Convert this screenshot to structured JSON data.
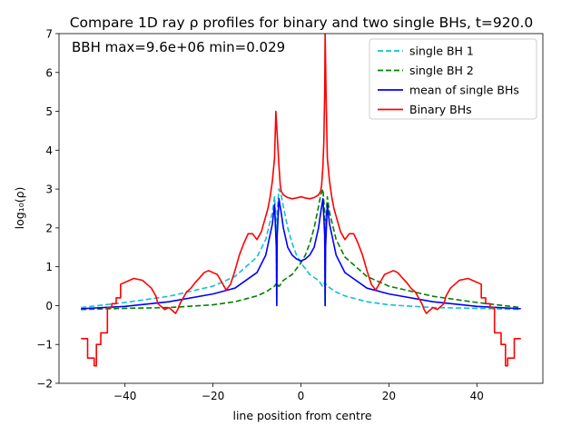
{
  "chart_data": {
    "type": "line",
    "title": "Compare 1D ray ρ profiles for binary and two single BHs, t=920.0",
    "xlabel": "line position from centre",
    "ylabel": "log₁₀(ρ)",
    "annotation": "BBH max=9.6e+06 min=0.029",
    "xlim": [
      -55,
      55
    ],
    "ylim": [
      -2,
      7
    ],
    "xticks": [
      -40,
      -20,
      0,
      20,
      40
    ],
    "yticks": [
      -2,
      -1,
      0,
      1,
      2,
      3,
      4,
      5,
      6,
      7
    ],
    "legend_position": "upper-right",
    "grid": false,
    "series": [
      {
        "name": "single BH 1",
        "color": "#17becf",
        "dash": "dashed",
        "x": [
          -50,
          -40,
          -30,
          -20,
          -15,
          -10,
          -8,
          -6.5,
          -6,
          -5.6,
          -5.5,
          -5.4,
          -5,
          -4.5,
          -4,
          -3,
          -2,
          -1,
          0,
          2,
          4,
          4.6,
          4.9,
          5.1,
          5.4,
          6,
          8,
          10,
          15,
          20,
          30,
          40,
          50
        ],
        "y": [
          -0.05,
          0.08,
          0.24,
          0.5,
          0.75,
          1.25,
          1.7,
          2.4,
          2.8,
          2.0,
          0.0,
          2.4,
          3.0,
          2.85,
          2.55,
          2.0,
          1.6,
          1.3,
          1.1,
          0.8,
          0.65,
          0.55,
          0.5,
          0.5,
          0.6,
          0.5,
          0.35,
          0.25,
          0.1,
          0.02,
          -0.05,
          -0.07,
          -0.1
        ]
      },
      {
        "name": "single BH 2",
        "color": "#008000",
        "dash": "dashed",
        "x": [
          -50,
          -40,
          -30,
          -20,
          -15,
          -10,
          -8,
          -6,
          -5.4,
          -5.1,
          -4.9,
          -4.6,
          -4,
          -2,
          0,
          1,
          2,
          3,
          4,
          4.5,
          5,
          5.4,
          5.5,
          5.6,
          6,
          6.5,
          8,
          10,
          15,
          20,
          30,
          40,
          50
        ],
        "y": [
          -0.1,
          -0.07,
          -0.05,
          0.02,
          0.1,
          0.25,
          0.35,
          0.5,
          0.6,
          0.5,
          0.5,
          0.55,
          0.65,
          0.8,
          1.1,
          1.3,
          1.6,
          2.0,
          2.55,
          2.85,
          3.0,
          2.4,
          0.0,
          2.0,
          2.8,
          2.4,
          1.7,
          1.25,
          0.75,
          0.5,
          0.24,
          0.08,
          -0.05
        ]
      },
      {
        "name": "mean of single BHs",
        "color": "#0000ff",
        "dash": "solid",
        "x": [
          -50,
          -40,
          -30,
          -20,
          -15,
          -10,
          -8,
          -6.5,
          -6,
          -5.6,
          -5.5,
          -5.4,
          -5,
          -4.5,
          -4,
          -3,
          -2,
          -1,
          0,
          1,
          2,
          3,
          4,
          4.5,
          5,
          5.4,
          5.5,
          5.6,
          6,
          6.5,
          8,
          10,
          15,
          20,
          30,
          40,
          50
        ],
        "y": [
          -0.08,
          -0.02,
          0.1,
          0.3,
          0.45,
          0.85,
          1.3,
          2.1,
          2.6,
          1.5,
          0.0,
          1.8,
          2.75,
          2.4,
          2.0,
          1.5,
          1.3,
          1.2,
          1.15,
          1.2,
          1.3,
          1.5,
          2.0,
          2.4,
          2.75,
          1.8,
          0.0,
          1.5,
          2.6,
          2.1,
          1.3,
          0.85,
          0.45,
          0.3,
          0.1,
          -0.02,
          -0.08
        ]
      },
      {
        "name": "Binary BHs",
        "color": "#ff0000",
        "dash": "solid",
        "x": [
          -50,
          -48.5,
          -48.5,
          -47,
          -47,
          -46.5,
          -46.5,
          -45.5,
          -45.5,
          -44,
          -44,
          -43,
          -43,
          -42,
          -42,
          -41,
          -41,
          -38,
          -36,
          -35,
          -34,
          -33,
          -32.5,
          -32,
          -31,
          -30,
          -29,
          -28.5,
          -28,
          -27.5,
          -27,
          -26,
          -25,
          -24,
          -23,
          -22,
          -21,
          -20,
          -19,
          -18,
          -17,
          -16,
          -15,
          -14,
          -13,
          -12,
          -11,
          -10,
          -9,
          -8,
          -7.5,
          -7,
          -6.5,
          -6,
          -5.7,
          -5.5,
          -5.3,
          -5,
          -4.7,
          -4.5,
          -4,
          -3,
          -2,
          -1,
          0,
          1,
          2,
          3,
          4,
          4.5,
          4.7,
          5,
          5.2,
          5.4,
          5.5,
          5.7,
          6,
          6.5,
          7,
          7.5,
          8,
          9,
          10,
          11,
          12,
          13,
          14,
          15,
          16,
          17,
          18,
          19,
          20,
          21,
          22,
          23,
          24,
          25,
          26,
          27,
          27.5,
          28,
          28.5,
          29,
          30,
          31,
          32,
          32.5,
          33,
          34,
          35,
          36,
          38,
          41,
          41,
          42,
          42,
          43,
          43,
          44,
          44,
          45.5,
          45.5,
          46.5,
          46.5,
          47,
          47,
          48.5,
          48.5,
          50
        ],
        "y": [
          -0.85,
          -0.85,
          -1.35,
          -1.35,
          -1.55,
          -1.55,
          -1.0,
          -1.0,
          -0.7,
          -0.7,
          -0.05,
          -0.05,
          0.05,
          0.05,
          0.2,
          0.2,
          0.55,
          0.7,
          0.65,
          0.55,
          0.45,
          0.25,
          0.05,
          0.0,
          -0.1,
          -0.05,
          -0.15,
          -0.2,
          -0.1,
          0.05,
          0.15,
          0.35,
          0.45,
          0.6,
          0.72,
          0.85,
          0.9,
          0.85,
          0.8,
          0.6,
          0.4,
          0.55,
          0.9,
          1.3,
          1.6,
          1.85,
          1.85,
          1.7,
          1.9,
          2.3,
          2.5,
          2.8,
          3.2,
          3.8,
          5.0,
          4.6,
          4.2,
          3.6,
          3.1,
          2.95,
          2.85,
          2.78,
          2.75,
          2.77,
          2.8,
          2.77,
          2.75,
          2.78,
          2.85,
          2.95,
          3.1,
          3.6,
          4.2,
          5.5,
          7.0,
          5.5,
          3.8,
          3.2,
          2.8,
          2.5,
          2.3,
          1.9,
          1.7,
          1.85,
          1.85,
          1.6,
          1.3,
          0.9,
          0.55,
          0.4,
          0.6,
          0.8,
          0.85,
          0.9,
          0.85,
          0.72,
          0.6,
          0.45,
          0.35,
          0.15,
          0.05,
          -0.1,
          -0.2,
          -0.15,
          -0.05,
          -0.1,
          0.0,
          0.05,
          0.25,
          0.45,
          0.55,
          0.65,
          0.7,
          0.55,
          0.2,
          0.2,
          0.05,
          0.05,
          -0.05,
          -0.05,
          -0.7,
          -0.7,
          -1.0,
          -1.0,
          -1.55,
          -1.55,
          -1.35,
          -1.35,
          -0.85,
          -0.85
        ]
      }
    ]
  }
}
